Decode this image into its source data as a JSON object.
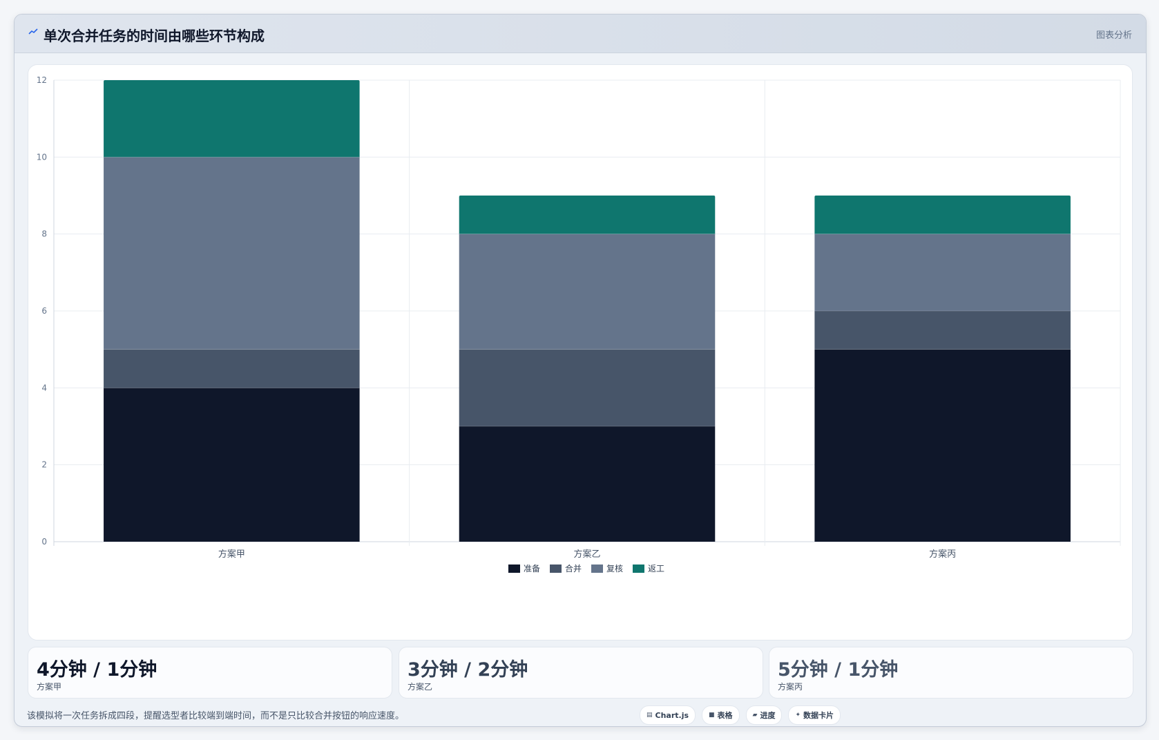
{
  "header": {
    "title": "单次合并任务的时间由哪些环节构成",
    "tag": "图表分析",
    "icon": "chart-icon"
  },
  "chart_data": {
    "type": "bar",
    "stacked": true,
    "categories": [
      "方案甲",
      "方案乙",
      "方案丙"
    ],
    "series": [
      {
        "name": "准备",
        "color": "#0f172a",
        "values": [
          4,
          3,
          5
        ]
      },
      {
        "name": "合并",
        "color": "#475569",
        "values": [
          1,
          2,
          1
        ]
      },
      {
        "name": "复核",
        "color": "#64748b",
        "values": [
          5,
          3,
          2
        ]
      },
      {
        "name": "返工",
        "color": "#0f766e",
        "values": [
          2,
          1,
          1
        ]
      }
    ],
    "ylim": [
      0,
      12
    ],
    "yticks": [
      0,
      2,
      4,
      6,
      8,
      10,
      12
    ],
    "grid": true,
    "legend": "bottom"
  },
  "stats": [
    {
      "value": "4分钟 / 1分钟",
      "label": "方案甲",
      "color": "#0f172a"
    },
    {
      "value": "3分钟 / 2分钟",
      "label": "方案乙",
      "color": "#334155"
    },
    {
      "value": "5分钟 / 1分钟",
      "label": "方案丙",
      "color": "#475569"
    }
  ],
  "footer": {
    "note": "该模拟将一次任务拆成四段，提醒选型者比较端到端时间，而不是只比较合并按钮的响应速度。",
    "pills": [
      {
        "icon": "▤",
        "label": "Chart.js"
      },
      {
        "icon": "■",
        "label": "表格"
      },
      {
        "icon": "▰",
        "label": "进度"
      },
      {
        "icon": "✦",
        "label": "数据卡片"
      }
    ]
  }
}
